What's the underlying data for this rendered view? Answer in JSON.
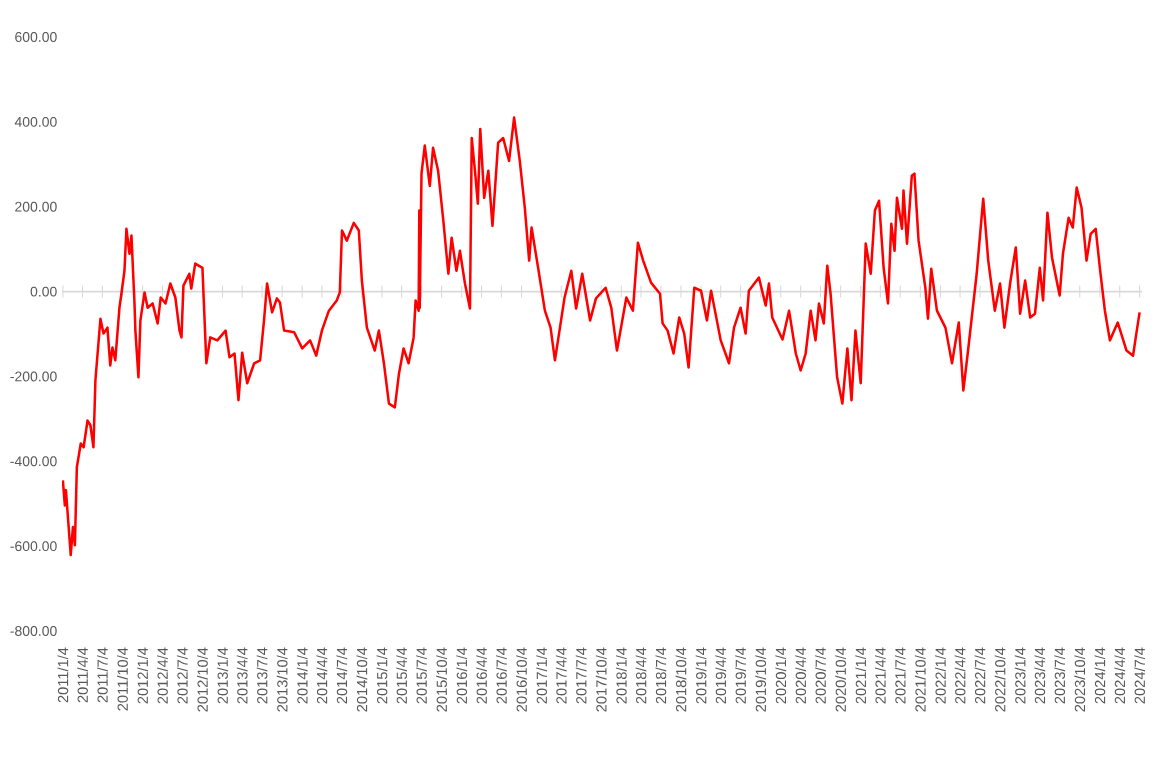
{
  "chart_data": {
    "type": "line",
    "color": "#ff0000",
    "x": [
      "2011-01-04",
      "2011-01-13",
      "2011-01-18",
      "2011-02-09",
      "2011-02-19",
      "2011-02-28",
      "2011-03-09",
      "2011-03-27",
      "2011-04-09",
      "2011-04-27",
      "2011-05-10",
      "2011-05-24",
      "2011-06-02",
      "2011-06-25",
      "2011-07-09",
      "2011-07-27",
      "2011-08-09",
      "2011-08-19",
      "2011-09-01",
      "2011-09-20",
      "2011-09-29",
      "2011-10-13",
      "2011-10-22",
      "2011-11-05",
      "2011-11-14",
      "2011-11-28",
      "2011-12-02",
      "2011-12-16",
      "2011-12-25",
      "2012-01-13",
      "2012-01-27",
      "2012-02-19",
      "2012-03-13",
      "2012-03-27",
      "2012-04-18",
      "2012-05-10",
      "2012-06-02",
      "2012-06-21",
      "2012-06-30",
      "2012-07-09",
      "2012-08-05",
      "2012-08-14",
      "2012-09-01",
      "2012-10-04",
      "2012-10-22",
      "2012-11-09",
      "2012-12-11",
      "2013-01-18",
      "2013-02-05",
      "2013-02-28",
      "2013-03-18",
      "2013-04-04",
      "2013-04-27",
      "2013-05-29",
      "2013-06-25",
      "2013-07-13",
      "2013-07-27",
      "2013-08-19",
      "2013-09-10",
      "2013-09-24",
      "2013-10-13",
      "2013-11-28",
      "2014-01-04",
      "2014-02-09",
      "2014-03-09",
      "2014-04-04",
      "2014-05-06",
      "2014-06-11",
      "2014-06-25",
      "2014-07-05",
      "2014-07-27",
      "2014-08-28",
      "2014-09-20",
      "2014-10-04",
      "2014-10-27",
      "2014-12-02",
      "2014-12-21",
      "2015-01-13",
      "2015-02-05",
      "2015-03-04",
      "2015-03-23",
      "2015-04-13",
      "2015-05-06",
      "2015-05-29",
      "2015-06-07",
      "2015-06-21",
      "2015-06-24",
      "2015-06-26",
      "2015-07-04",
      "2015-07-19",
      "2015-08-11",
      "2015-08-26",
      "2015-09-18",
      "2015-10-12",
      "2015-11-04",
      "2015-11-19",
      "2015-12-11",
      "2015-12-27",
      "2016-01-19",
      "2016-02-11",
      "2016-02-19",
      "2016-03-06",
      "2016-03-18",
      "2016-03-29",
      "2016-04-16",
      "2016-05-05",
      "2016-05-24",
      "2016-06-19",
      "2016-07-12",
      "2016-08-08",
      "2016-08-31",
      "2016-09-26",
      "2016-10-19",
      "2016-11-08",
      "2016-11-19",
      "2016-12-19",
      "2017-01-19",
      "2017-02-14",
      "2017-03-06",
      "2017-03-29",
      "2017-04-19",
      "2017-05-20",
      "2017-06-11",
      "2017-07-09",
      "2017-08-14",
      "2017-09-10",
      "2017-10-24",
      "2017-11-19",
      "2017-12-15",
      "2018-01-27",
      "2018-02-26",
      "2018-03-21",
      "2018-04-14",
      "2018-05-20",
      "2018-06-30",
      "2018-07-12",
      "2018-08-04",
      "2018-08-31",
      "2018-09-26",
      "2018-10-19",
      "2018-11-08",
      "2018-12-04",
      "2019-01-04",
      "2019-01-31",
      "2019-02-19",
      "2019-04-04",
      "2019-05-12",
      "2019-06-04",
      "2019-07-04",
      "2019-07-27",
      "2019-08-11",
      "2019-09-26",
      "2019-10-27",
      "2019-11-11",
      "2019-11-26",
      "2020-01-12",
      "2020-02-11",
      "2020-03-13",
      "2020-04-04",
      "2020-04-27",
      "2020-05-20",
      "2020-06-11",
      "2020-06-27",
      "2020-07-19",
      "2020-08-04",
      "2020-08-19",
      "2020-09-18",
      "2020-10-12",
      "2020-11-04",
      "2020-11-23",
      "2020-12-11",
      "2021-01-04",
      "2021-01-27",
      "2021-02-19",
      "2021-03-10",
      "2021-03-29",
      "2021-04-19",
      "2021-05-09",
      "2021-05-24",
      "2021-06-08",
      "2021-06-19",
      "2021-07-12",
      "2021-07-19",
      "2021-08-04",
      "2021-08-26",
      "2021-09-07",
      "2021-09-26",
      "2021-10-27",
      "2021-11-08",
      "2021-11-23",
      "2021-12-19",
      "2022-01-27",
      "2022-02-26",
      "2022-03-29",
      "2022-04-19",
      "2022-05-09",
      "2022-06-19",
      "2022-07-19",
      "2022-08-11",
      "2022-09-10",
      "2022-10-04",
      "2022-10-24",
      "2022-11-19",
      "2022-12-15",
      "2023-01-04",
      "2023-01-27",
      "2023-02-19",
      "2023-03-13",
      "2023-04-04",
      "2023-04-19",
      "2023-05-09",
      "2023-05-30",
      "2023-07-04",
      "2023-07-19",
      "2023-08-14",
      "2023-09-02",
      "2023-09-20",
      "2023-10-12",
      "2023-11-04",
      "2023-11-23",
      "2023-12-16",
      "2024-01-04",
      "2024-01-27",
      "2024-02-19",
      "2024-03-26",
      "2024-05-05",
      "2024-06-04",
      "2024-06-19",
      "2024-07-04"
    ],
    "values": [
      -445,
      -504,
      -468,
      -621,
      -555,
      -598,
      -414,
      -358,
      -367,
      -304,
      -315,
      -367,
      -209,
      -64,
      -99,
      -85,
      -174,
      -132,
      -162,
      -38,
      -5,
      49,
      148,
      89,
      132,
      -28,
      -92,
      -202,
      -68,
      -2,
      -38,
      -28,
      -75,
      -14,
      -28,
      19,
      -14,
      -92,
      -108,
      14,
      42,
      7,
      66,
      56,
      -169,
      -108,
      -115,
      -92,
      -155,
      -146,
      -256,
      -144,
      -216,
      -169,
      -162,
      -68,
      19,
      -49,
      -16,
      -26,
      -92,
      -96,
      -134,
      -115,
      -151,
      -92,
      -45,
      -21,
      -2,
      144,
      120,
      162,
      144,
      26,
      -85,
      -139,
      -92,
      -169,
      -264,
      -273,
      -193,
      -134,
      -169,
      -108,
      -21,
      -45,
      191,
      -38,
      278,
      344,
      249,
      339,
      285,
      167,
      42,
      127,
      49,
      96,
      19,
      -40,
      362,
      278,
      207,
      383,
      221,
      285,
      155,
      351,
      362,
      308,
      410,
      308,
      198,
      73,
      151,
      56,
      -45,
      -85,
      -162,
      -85,
      -14,
      49,
      -40,
      42,
      -68,
      -16,
      9,
      -38,
      -139,
      -14,
      -45,
      115,
      73,
      21,
      -5,
      -75,
      -92,
      -146,
      -61,
      -99,
      -179,
      9,
      2,
      -68,
      2,
      -115,
      -169,
      -85,
      -38,
      -99,
      2,
      33,
      -33,
      19,
      -61,
      -113,
      -45,
      -146,
      -186,
      -146,
      -45,
      -115,
      -28,
      -75,
      61,
      -5,
      -202,
      -264,
      -134,
      -256,
      -92,
      -216,
      113,
      42,
      191,
      214,
      56,
      -28,
      160,
      96,
      221,
      148,
      238,
      113,
      273,
      278,
      120,
      9,
      -64,
      54,
      -45,
      -85,
      -169,
      -73,
      -233,
      -146,
      42,
      219,
      73,
      -45,
      19,
      -85,
      19,
      104,
      -52,
      26,
      -61,
      -52,
      56,
      -21,
      186,
      80,
      -9,
      89,
      174,
      151,
      245,
      198,
      73,
      136,
      148,
      56,
      -45,
      -115,
      -73,
      -139,
      -151,
      -99,
      -49
    ],
    "xlim": [
      "2010-12-31",
      "2024-07-15"
    ],
    "ylim": [
      -800,
      600
    ],
    "yticks": [
      {
        "value": -800,
        "label": "-800.00"
      },
      {
        "value": -600,
        "label": "-600.00"
      },
      {
        "value": -400,
        "label": "-400.00"
      },
      {
        "value": -200,
        "label": "-200.00"
      },
      {
        "value": 0,
        "label": "0.00"
      },
      {
        "value": 200,
        "label": "200.00"
      },
      {
        "value": 400,
        "label": "400.00"
      },
      {
        "value": 600,
        "label": "600.00"
      }
    ],
    "xticks": [
      {
        "value": "2011-01-04",
        "label": "2011/1/4"
      },
      {
        "value": "2011-04-04",
        "label": "2011/4/4"
      },
      {
        "value": "2011-07-04",
        "label": "2011/7/4"
      },
      {
        "value": "2011-10-04",
        "label": "2011/10/4"
      },
      {
        "value": "2012-01-04",
        "label": "2012/1/4"
      },
      {
        "value": "2012-04-04",
        "label": "2012/4/4"
      },
      {
        "value": "2012-07-04",
        "label": "2012/7/4"
      },
      {
        "value": "2012-10-04",
        "label": "2012/10/4"
      },
      {
        "value": "2013-01-04",
        "label": "2013/1/4"
      },
      {
        "value": "2013-04-04",
        "label": "2013/4/4"
      },
      {
        "value": "2013-07-04",
        "label": "2013/7/4"
      },
      {
        "value": "2013-10-04",
        "label": "2013/10/4"
      },
      {
        "value": "2014-01-04",
        "label": "2014/1/4"
      },
      {
        "value": "2014-04-04",
        "label": "2014/4/4"
      },
      {
        "value": "2014-07-04",
        "label": "2014/7/4"
      },
      {
        "value": "2014-10-04",
        "label": "2014/10/4"
      },
      {
        "value": "2015-01-04",
        "label": "2015/1/4"
      },
      {
        "value": "2015-04-04",
        "label": "2015/4/4"
      },
      {
        "value": "2015-07-04",
        "label": "2015/7/4"
      },
      {
        "value": "2015-10-04",
        "label": "2015/10/4"
      },
      {
        "value": "2016-01-04",
        "label": "2016/1/4"
      },
      {
        "value": "2016-04-04",
        "label": "2016/4/4"
      },
      {
        "value": "2016-07-04",
        "label": "2016/7/4"
      },
      {
        "value": "2016-10-04",
        "label": "2016/10/4"
      },
      {
        "value": "2017-01-04",
        "label": "2017/1/4"
      },
      {
        "value": "2017-04-04",
        "label": "2017/4/4"
      },
      {
        "value": "2017-07-04",
        "label": "2017/7/4"
      },
      {
        "value": "2017-10-04",
        "label": "2017/10/4"
      },
      {
        "value": "2018-01-04",
        "label": "2018/1/4"
      },
      {
        "value": "2018-04-04",
        "label": "2018/4/4"
      },
      {
        "value": "2018-07-04",
        "label": "2018/7/4"
      },
      {
        "value": "2018-10-04",
        "label": "2018/10/4"
      },
      {
        "value": "2019-01-04",
        "label": "2019/1/4"
      },
      {
        "value": "2019-04-04",
        "label": "2019/4/4"
      },
      {
        "value": "2019-07-04",
        "label": "2019/7/4"
      },
      {
        "value": "2019-10-04",
        "label": "2019/10/4"
      },
      {
        "value": "2020-01-04",
        "label": "2020/1/4"
      },
      {
        "value": "2020-04-04",
        "label": "2020/4/4"
      },
      {
        "value": "2020-07-04",
        "label": "2020/7/4"
      },
      {
        "value": "2020-10-04",
        "label": "2020/10/4"
      },
      {
        "value": "2021-01-04",
        "label": "2021/1/4"
      },
      {
        "value": "2021-04-04",
        "label": "2021/4/4"
      },
      {
        "value": "2021-07-04",
        "label": "2021/7/4"
      },
      {
        "value": "2021-10-04",
        "label": "2021/10/4"
      },
      {
        "value": "2022-01-04",
        "label": "2022/1/4"
      },
      {
        "value": "2022-04-04",
        "label": "2022/4/4"
      },
      {
        "value": "2022-07-04",
        "label": "2022/7/4"
      },
      {
        "value": "2022-10-04",
        "label": "2022/10/4"
      },
      {
        "value": "2023-01-04",
        "label": "2023/1/4"
      },
      {
        "value": "2023-04-04",
        "label": "2023/4/4"
      },
      {
        "value": "2023-07-04",
        "label": "2023/7/4"
      },
      {
        "value": "2023-10-04",
        "label": "2023/10/4"
      },
      {
        "value": "2024-01-04",
        "label": "2024/1/4"
      },
      {
        "value": "2024-04-04",
        "label": "2024/4/4"
      },
      {
        "value": "2024-07-04",
        "label": "2024/7/4"
      }
    ]
  }
}
